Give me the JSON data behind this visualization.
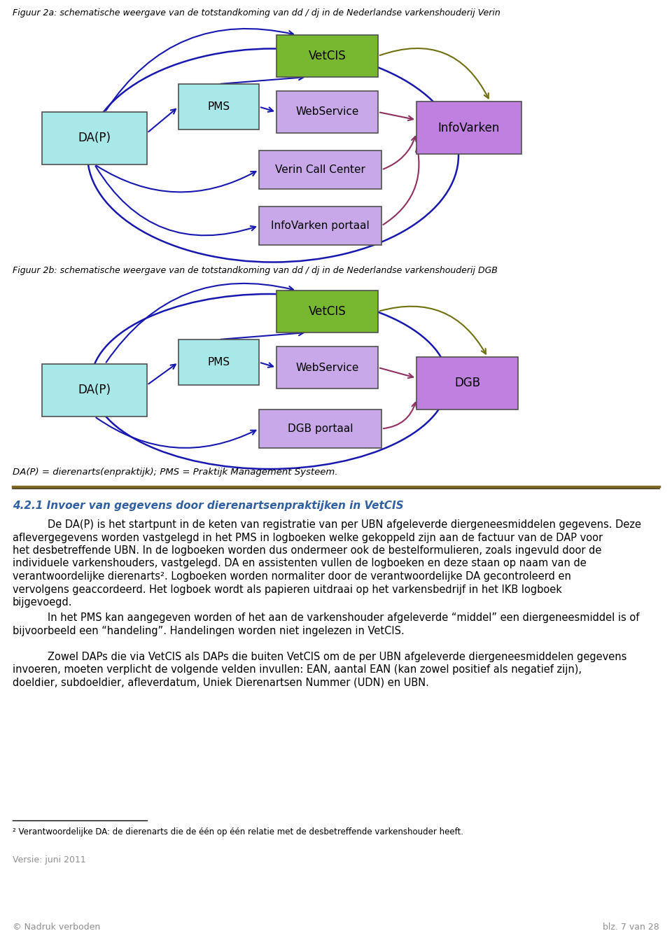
{
  "fig_title_a": "Figuur 2a: schematische weergave van de totstandkoming van dd / dj in de Nederlandse varkenshouderij Verin",
  "fig_title_b": "Figuur 2b: schematische weergave van de totstandkoming van dd / dj in de Nederlandse varkenshouderij DGB",
  "fig_caption": "DA(P) = dierenarts(enpraktijk); PMS = Praktijk Management Systeem.",
  "section_title": "4.2.1 Invoer van gegevens door dierenartsenpraktijken in VetCIS",
  "para1": "De DA(P) is het startpunt in de keten van registratie van per UBN afgeleverde diergeneesmiddelen gegevens. Deze aflevergegevens worden vastgelegd in het PMS in logboeken welke gekoppeld zijn aan de factuur van de DAP voor het desbetreffende UBN. In de logboeken worden dus ondermeer ook de bestelformulieren, zoals ingevuld door de individuele varkenshouders, vastgelegd. DA en assistenten vullen de logboeken en deze staan op naam van de verantwoordelijke dierenarts². Logboeken worden normaliter door de verantwoordelijke DA gecontroleerd en vervolgens geaccordeerd. Het logboek wordt als papieren uitdraai op het varkensbedrijf in het IKB logboek bijgevoegd.",
  "para2": "In het PMS kan aangegeven worden of het aan de varkenshouder afgeleverde “middel” een diergeneesmiddel is of bijvoorbeeld een “handeling”. Handelingen worden niet ingelezen in VetCIS.",
  "para3": "Zowel DAPs die via VetCIS als DAPs die buiten VetCIS om de per UBN afgeleverde diergeneesmiddelen gegevens invoeren, moeten verplicht de volgende velden invullen: EAN, aantal EAN (kan zowel positief als negatief zijn), doeldier, subdoeldier, afleverdatum, Uniek Dierenartsen Nummer (UDN) en UBN.",
  "footnote": "² Verantwoordelijke DA: de dierenarts die de één op één relatie met de desbetreffende varkenshouder heeft.",
  "versie": "Versie: juni 2011",
  "copyright": "© Nadruk verboden",
  "blz": "blz. 7 van 28",
  "box_dap_color": "#a8e8e8",
  "box_pms_color": "#a8e8e8",
  "box_vetcis_color": "#78b830",
  "box_webservice_color": "#c8a8e8",
  "box_verin_color": "#c8a8e8",
  "box_infovarken_color": "#c080e0",
  "box_dgb_color": "#c080e0",
  "box_infovarkenportaal_color": "#c8a8e8",
  "box_dgbportaal_color": "#c8a8e8",
  "arrow_blue_color": "#1818b0",
  "arrow_olive_color": "#707010",
  "arrow_red_color": "#903060",
  "divider_color1": "#806820",
  "divider_color2": "#403010",
  "title_color": "#000000",
  "section_color": "#3060a0",
  "text_color": "#000000",
  "versie_color": "#909090",
  "bg_color": "#ffffff"
}
